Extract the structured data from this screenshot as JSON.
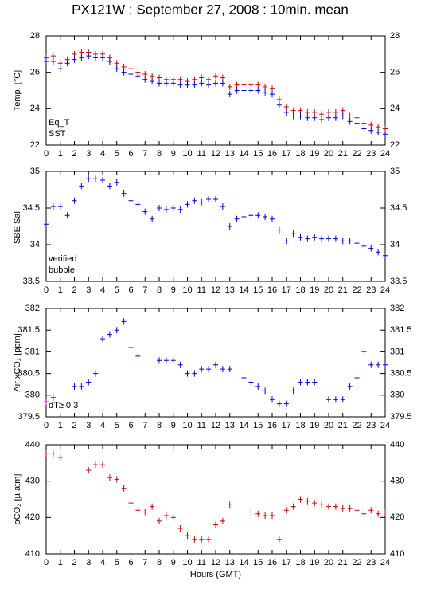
{
  "title": "PX121W : September 27, 2008 : 10min. mean",
  "chart_data": [
    {
      "type": "scatter",
      "ylabel": "Temp. [°C]",
      "x": [
        0,
        0.5,
        1,
        1.5,
        2,
        2.5,
        3,
        3.5,
        4,
        4.5,
        5,
        5.5,
        6,
        6.5,
        7,
        7.5,
        8,
        8.5,
        9,
        9.5,
        10,
        10.5,
        11,
        11.5,
        12,
        12.5,
        13,
        13.5,
        14,
        14.5,
        15,
        15.5,
        16,
        16.5,
        17,
        17.5,
        18,
        18.5,
        19,
        19.5,
        20,
        20.5,
        21,
        21.5,
        22,
        22.5,
        23,
        23.5,
        24
      ],
      "xlim": [
        0,
        24
      ],
      "xticks": [
        0,
        1,
        2,
        3,
        4,
        5,
        6,
        7,
        8,
        9,
        10,
        11,
        12,
        13,
        14,
        15,
        16,
        17,
        18,
        19,
        20,
        21,
        22,
        23,
        24
      ],
      "ylim": [
        22,
        28
      ],
      "yticks": [
        22,
        24,
        26,
        28
      ],
      "series": [
        {
          "name": "Eq_T",
          "color": "#cc0000",
          "values": [
            26.8,
            26.9,
            26.5,
            26.7,
            27.0,
            27.1,
            27.1,
            27.0,
            27.0,
            26.8,
            26.5,
            26.3,
            26.2,
            26.0,
            25.9,
            25.8,
            25.7,
            25.6,
            25.6,
            25.6,
            25.5,
            25.6,
            25.7,
            25.6,
            25.8,
            25.7,
            25.2,
            25.3,
            25.3,
            25.3,
            25.3,
            25.2,
            25.1,
            24.5,
            24.1,
            23.9,
            23.9,
            23.8,
            23.8,
            23.7,
            23.8,
            23.8,
            23.9,
            23.6,
            23.5,
            23.2,
            23.1,
            23.0,
            22.9
          ]
        },
        {
          "name": "SST",
          "color": "#0000cc",
          "values": [
            26.6,
            26.6,
            26.2,
            26.5,
            26.7,
            26.8,
            26.9,
            26.8,
            26.8,
            26.6,
            26.2,
            26.0,
            25.9,
            25.8,
            25.6,
            25.5,
            25.4,
            25.4,
            25.4,
            25.3,
            25.3,
            25.3,
            25.4,
            25.3,
            25.4,
            25.4,
            24.8,
            25.0,
            25.0,
            25.0,
            25.0,
            24.9,
            24.8,
            24.2,
            23.8,
            23.6,
            23.6,
            23.5,
            23.5,
            23.4,
            23.5,
            23.5,
            23.6,
            23.3,
            23.2,
            22.9,
            22.8,
            22.7,
            22.6
          ]
        }
      ]
    },
    {
      "type": "scatter",
      "ylabel": "SBE Sal.",
      "x": [
        0,
        0.5,
        1,
        1.5,
        2,
        2.5,
        3,
        3.5,
        4,
        4.5,
        5,
        5.5,
        6,
        6.5,
        7,
        7.5,
        8,
        8.5,
        9,
        9.5,
        10,
        10.5,
        11,
        11.5,
        12,
        12.5,
        13,
        13.5,
        14,
        14.5,
        15,
        15.5,
        16,
        16.5,
        17,
        17.5,
        18,
        18.5,
        19,
        19.5,
        20,
        20.5,
        21,
        21.5,
        22,
        22.5,
        23,
        23.5,
        24
      ],
      "xlim": [
        0,
        24
      ],
      "xticks": [
        0,
        1,
        2,
        3,
        4,
        5,
        6,
        7,
        8,
        9,
        10,
        11,
        12,
        13,
        14,
        15,
        16,
        17,
        18,
        19,
        20,
        21,
        22,
        23,
        24
      ],
      "ylim": [
        33.5,
        35
      ],
      "yticks": [
        33.5,
        34,
        34.5,
        35
      ],
      "series": [
        {
          "name": "verified",
          "color": "#0000cc",
          "values": [
            34.28,
            34.52,
            34.52,
            34.4,
            34.6,
            34.8,
            34.9,
            34.9,
            34.88,
            34.8,
            34.85,
            34.7,
            34.6,
            34.55,
            34.45,
            34.35,
            34.5,
            34.48,
            34.5,
            34.48,
            34.55,
            34.6,
            34.58,
            34.62,
            34.62,
            34.52,
            34.25,
            34.35,
            34.38,
            34.4,
            34.4,
            34.38,
            34.35,
            34.2,
            34.05,
            34.15,
            34.1,
            34.08,
            34.1,
            34.08,
            34.08,
            34.08,
            34.05,
            34.05,
            34.02,
            33.98,
            33.95,
            33.9,
            33.85
          ]
        },
        {
          "name": "bubble",
          "color": "#cc00cc",
          "values": [
            null,
            null,
            null,
            null,
            null,
            null,
            null,
            null,
            null,
            null,
            null,
            null,
            null,
            null,
            null,
            null,
            null,
            null,
            null,
            null,
            null,
            null,
            null,
            null,
            null,
            null,
            null,
            null,
            null,
            null,
            null,
            null,
            null,
            null,
            null,
            null,
            null,
            null,
            null,
            null,
            null,
            null,
            null,
            null,
            null,
            null,
            null,
            null,
            null
          ]
        }
      ]
    },
    {
      "type": "scatter",
      "ylabel": "Air xCO₂ [ppm]",
      "x": [
        0,
        0.5,
        1,
        1.5,
        2,
        2.5,
        3,
        3.5,
        4,
        4.5,
        5,
        5.5,
        6,
        6.5,
        7,
        7.5,
        8,
        8.5,
        9,
        9.5,
        10,
        10.5,
        11,
        11.5,
        12,
        12.5,
        13,
        13.5,
        14,
        14.5,
        15,
        15.5,
        16,
        16.5,
        17,
        17.5,
        18,
        18.5,
        19,
        19.5,
        20,
        20.5,
        21,
        21.5,
        22,
        22.5,
        23,
        23.5,
        24
      ],
      "xlim": [
        0,
        24
      ],
      "xticks": [
        0,
        1,
        2,
        3,
        4,
        5,
        6,
        7,
        8,
        9,
        10,
        11,
        12,
        13,
        14,
        15,
        16,
        17,
        18,
        19,
        20,
        21,
        22,
        23,
        24
      ],
      "ylim": [
        379.5,
        382
      ],
      "yticks": [
        379.5,
        380,
        380.5,
        381,
        381.5,
        382
      ],
      "series": [
        {
          "color": "#0000cc",
          "values": [
            null,
            null,
            null,
            null,
            380.2,
            380.2,
            380.3,
            380.5,
            381.3,
            381.4,
            381.5,
            381.7,
            381.1,
            380.9,
            null,
            null,
            380.8,
            380.8,
            380.8,
            380.7,
            380.5,
            380.5,
            380.6,
            380.6,
            380.7,
            380.6,
            380.6,
            null,
            380.4,
            380.3,
            380.2,
            380.1,
            379.9,
            379.8,
            379.8,
            380.1,
            380.3,
            380.3,
            380.3,
            null,
            379.9,
            379.9,
            379.9,
            380.2,
            380.4,
            null,
            380.7,
            380.7,
            380.7
          ]
        },
        {
          "name": "dT≥ 0.3",
          "color": "#cc00cc",
          "values": [
            379.85,
            379.95,
            null,
            null,
            null,
            null,
            null,
            null,
            null,
            null,
            null,
            null,
            null,
            null,
            null,
            null,
            null,
            null,
            null,
            null,
            null,
            null,
            null,
            null,
            null,
            null,
            null,
            null,
            null,
            null,
            null,
            null,
            null,
            null,
            null,
            null,
            null,
            null,
            null,
            null,
            null,
            null,
            null,
            null,
            null,
            381.0,
            null,
            null,
            null
          ]
        }
      ]
    },
    {
      "type": "scatter",
      "ylabel": "ρCO₂ [µ atm]",
      "xlabel": "Hours (GMT)",
      "x": [
        0,
        0.5,
        1,
        1.5,
        2,
        2.5,
        3,
        3.5,
        4,
        4.5,
        5,
        5.5,
        6,
        6.5,
        7,
        7.5,
        8,
        8.5,
        9,
        9.5,
        10,
        10.5,
        11,
        11.5,
        12,
        12.5,
        13,
        13.5,
        14,
        14.5,
        15,
        15.5,
        16,
        16.5,
        17,
        17.5,
        18,
        18.5,
        19,
        19.5,
        20,
        20.5,
        21,
        21.5,
        22,
        22.5,
        23,
        23.5,
        24
      ],
      "xlim": [
        0,
        24
      ],
      "xticks": [
        0,
        1,
        2,
        3,
        4,
        5,
        6,
        7,
        8,
        9,
        10,
        11,
        12,
        13,
        14,
        15,
        16,
        17,
        18,
        19,
        20,
        21,
        22,
        23,
        24
      ],
      "ylim": [
        410,
        440
      ],
      "yticks": [
        410,
        420,
        430,
        440
      ],
      "series": [
        {
          "color": "#cc0000",
          "values": [
            437.5,
            437.5,
            436.5,
            null,
            null,
            null,
            433,
            434.5,
            434.5,
            431,
            430.5,
            428,
            424,
            422,
            421.5,
            423,
            419,
            420.5,
            420,
            417,
            415,
            414,
            414,
            414,
            418,
            419,
            423.5,
            null,
            null,
            421.5,
            421,
            420.5,
            420.5,
            414,
            422,
            423,
            425,
            424.5,
            424,
            423.5,
            423,
            423,
            422.5,
            422.5,
            422,
            421,
            422,
            421,
            421.5
          ]
        }
      ]
    }
  ]
}
